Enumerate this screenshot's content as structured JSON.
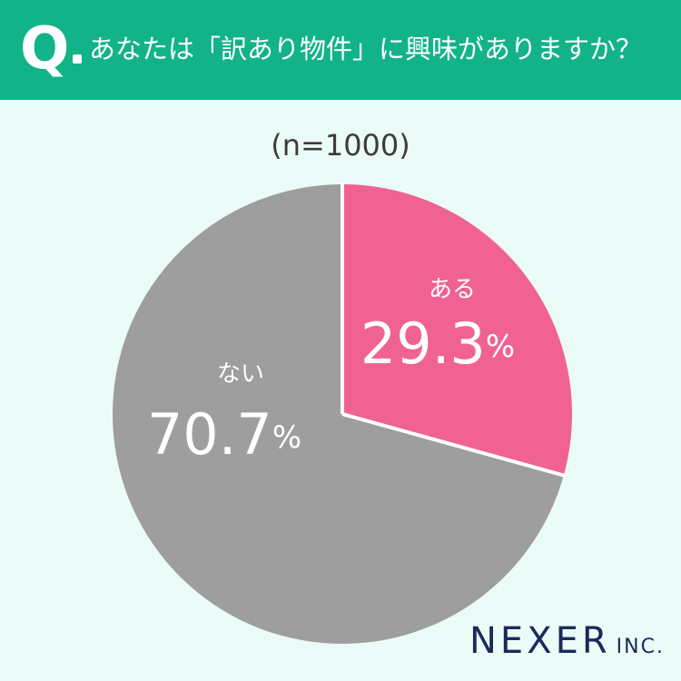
{
  "header": {
    "q_mark": "Q",
    "question": "あなたは「訳あり物件」に興味がありますか？"
  },
  "sample_size": "(n=1000)",
  "chart_data": {
    "type": "pie",
    "categories": [
      "ある",
      "ない"
    ],
    "values": [
      29.3,
      70.7
    ],
    "value_labels": [
      "29.3",
      "70.7"
    ],
    "unit": "%",
    "colors": [
      "#f06292",
      "#9e9e9e"
    ],
    "start_angle": "12 o'clock, clockwise",
    "label_color": "#ffffff",
    "separator_color": "#ffffff"
  },
  "logo": {
    "name": "NEXER",
    "suffix": "INC."
  },
  "colors": {
    "header": "#12b389",
    "background": "#ebfbf7",
    "logo": "#1a2a5c"
  }
}
